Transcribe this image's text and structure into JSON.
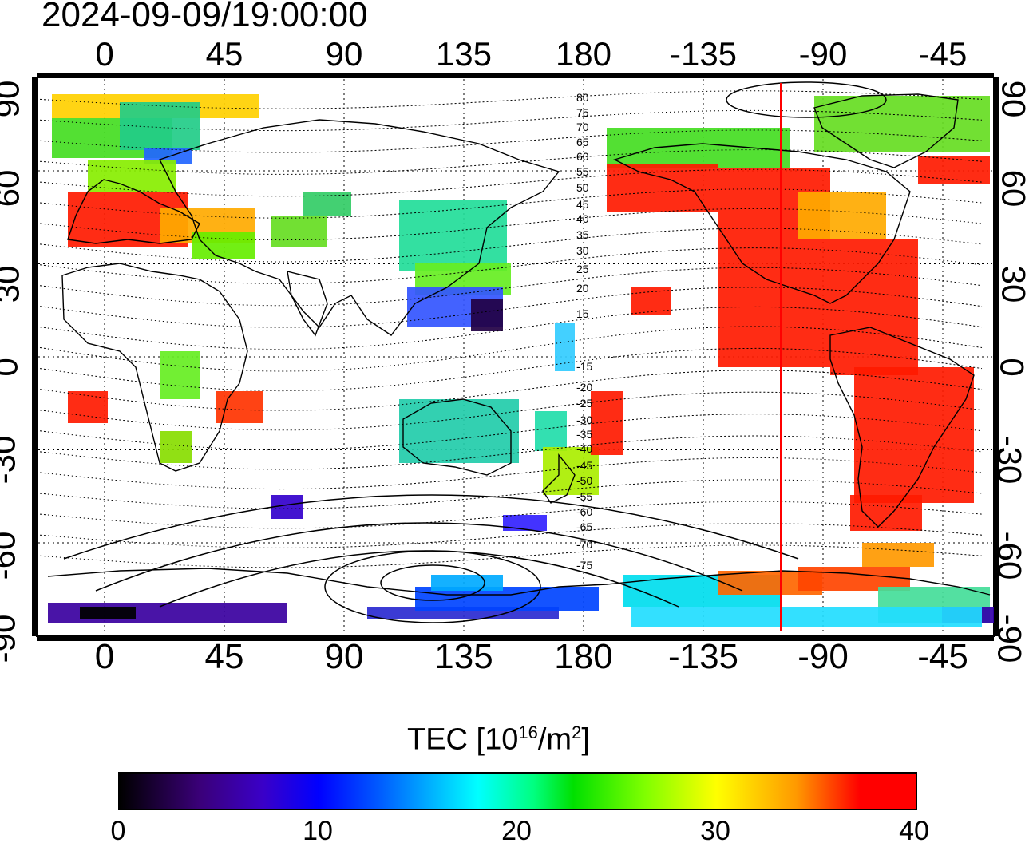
{
  "timestamp": "2024-09-09/19:00:00",
  "map": {
    "lon_ticks": [
      "0",
      "45",
      "90",
      "135",
      "180",
      "-135",
      "-90",
      "-45"
    ],
    "lat_ticks": [
      "90",
      "60",
      "30",
      "0",
      "-30",
      "-60",
      "-90"
    ],
    "contour_labels": [
      "80",
      "75",
      "70",
      "65",
      "60",
      "55",
      "50",
      "45",
      "40",
      "35",
      "30",
      "25",
      "20",
      "15",
      "-15",
      "-20",
      "-25",
      "-30",
      "-35",
      "-40",
      "-45",
      "-50",
      "-55",
      "-60",
      "-65",
      "-70",
      "-75"
    ],
    "terminator_color": "#ff0000"
  },
  "colorbar": {
    "title": "TEC  [10",
    "exponent": "16",
    "unit_mid": "/m",
    "unit_exp": "2",
    "unit_end": "]",
    "labels": [
      "0",
      "10",
      "20",
      "30",
      "40"
    ],
    "range": [
      0,
      40
    ]
  }
}
